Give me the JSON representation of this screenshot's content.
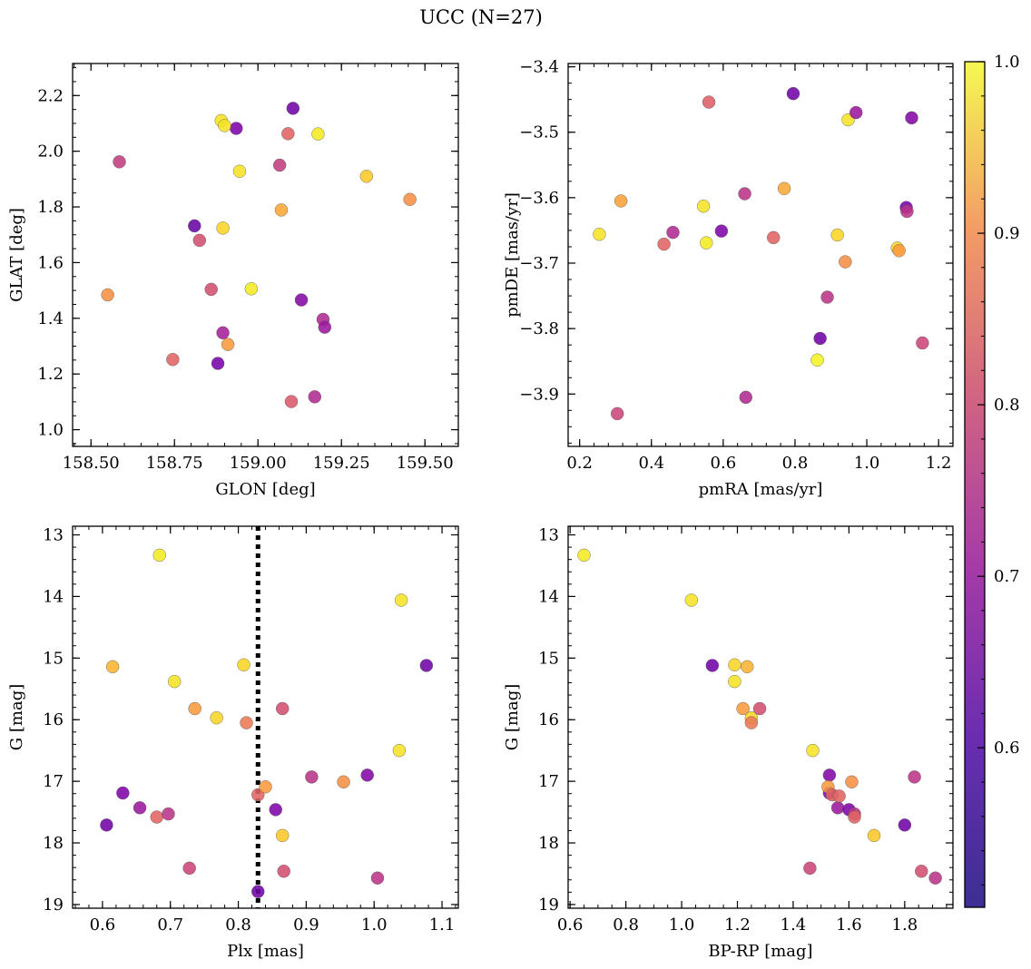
{
  "title": "UCC (N=27)",
  "chart_data": [
    {
      "type": "scatter",
      "xlabel": "GLON [deg]",
      "ylabel": "GLAT [deg]",
      "xlim": [
        158.445,
        159.6
      ],
      "ylim": [
        0.94,
        2.315
      ],
      "xticks": [
        158.5,
        158.75,
        159.0,
        159.25,
        159.5
      ],
      "xtick_labels": [
        "158.50",
        "158.75",
        "159.00",
        "159.25",
        "159.50"
      ],
      "yticks": [
        1.0,
        1.2,
        1.4,
        1.6,
        1.8,
        2.0,
        2.2
      ],
      "ytick_labels": [
        "1.0",
        "1.2",
        "1.4",
        "1.6",
        "1.8",
        "2.0",
        "2.2"
      ],
      "y_inverted": false,
      "x": [
        158.585,
        158.55,
        158.745,
        158.81,
        158.825,
        158.86,
        158.895,
        158.88,
        158.895,
        158.91,
        158.89,
        158.935,
        158.9,
        158.945,
        158.98,
        159.065,
        159.07,
        159.09,
        159.1,
        159.105,
        159.13,
        159.17,
        159.18,
        159.195,
        159.2,
        159.325,
        159.455
      ],
      "y": [
        1.962,
        1.484,
        1.252,
        1.732,
        1.68,
        1.504,
        1.348,
        1.238,
        1.724,
        1.306,
        2.11,
        2.082,
        2.092,
        1.928,
        1.506,
        1.95,
        1.789,
        2.063,
        1.101,
        2.154,
        1.466,
        1.118,
        2.062,
        1.396,
        1.368,
        1.91,
        1.827
      ],
      "c": [
        0.68,
        0.84,
        0.76,
        0.52,
        0.72,
        0.72,
        0.62,
        0.54,
        0.95,
        0.86,
        0.97,
        0.55,
        0.97,
        0.97,
        0.98,
        0.68,
        0.88,
        0.76,
        0.74,
        0.53,
        0.56,
        0.64,
        0.98,
        0.64,
        0.6,
        0.93,
        0.84
      ]
    },
    {
      "type": "scatter",
      "xlabel": "pmRA [mas/yr]",
      "ylabel": "pmDE [mas/yr]",
      "xlim": [
        0.168,
        1.24
      ],
      "ylim": [
        -3.98,
        -3.395
      ],
      "xticks": [
        0.2,
        0.4,
        0.6,
        0.8,
        1.0,
        1.2
      ],
      "xtick_labels": [
        "0.2",
        "0.4",
        "0.6",
        "0.8",
        "1.0",
        "1.2"
      ],
      "yticks": [
        -3.9,
        -3.8,
        -3.7,
        -3.6,
        -3.5,
        -3.4
      ],
      "ytick_labels": [
        "−3.9",
        "−3.8",
        "−3.7",
        "−3.6",
        "−3.5",
        "−3.4"
      ],
      "y_inverted": false,
      "x": [
        0.255,
        0.305,
        0.315,
        0.435,
        0.46,
        0.545,
        0.553,
        0.56,
        0.595,
        0.66,
        0.663,
        0.74,
        0.77,
        0.795,
        0.862,
        0.87,
        0.89,
        0.918,
        0.94,
        0.948,
        0.97,
        1.085,
        1.09,
        1.11,
        1.112,
        1.125,
        1.155
      ],
      "y": [
        -3.656,
        -3.93,
        -3.605,
        -3.671,
        -3.653,
        -3.613,
        -3.669,
        -3.454,
        -3.651,
        -3.594,
        -3.905,
        -3.661,
        -3.586,
        -3.441,
        -3.848,
        -3.815,
        -3.752,
        -3.657,
        -3.698,
        -3.481,
        -3.47,
        -3.677,
        -3.681,
        -3.615,
        -3.621,
        -3.478,
        -3.822
      ],
      "c": [
        0.97,
        0.7,
        0.87,
        0.76,
        0.64,
        0.97,
        0.98,
        0.75,
        0.55,
        0.66,
        0.64,
        0.76,
        0.88,
        0.53,
        0.99,
        0.53,
        0.66,
        0.95,
        0.84,
        0.97,
        0.6,
        0.95,
        0.86,
        0.54,
        0.66,
        0.56,
        0.7
      ]
    },
    {
      "type": "scatter",
      "xlabel": "Plx [mas]",
      "ylabel": "G [mag]",
      "xlim": [
        0.556,
        1.124
      ],
      "ylim": [
        19.06,
        12.86
      ],
      "xticks": [
        0.6,
        0.7,
        0.8,
        0.9,
        1.0,
        1.1
      ],
      "xtick_labels": [
        "0.6",
        "0.7",
        "0.8",
        "0.9",
        "1.0",
        "1.1"
      ],
      "yticks": [
        13,
        14,
        15,
        16,
        17,
        18,
        19
      ],
      "ytick_labels": [
        "13",
        "14",
        "15",
        "16",
        "17",
        "18",
        "19"
      ],
      "y_inverted": true,
      "vline": 0.829,
      "x": [
        0.684,
        0.615,
        0.706,
        0.736,
        0.768,
        0.808,
        0.812,
        0.606,
        0.63,
        0.655,
        0.68,
        0.697,
        0.728,
        0.829,
        0.84,
        0.855,
        0.865,
        0.865,
        0.867,
        0.908,
        0.955,
        0.99,
        1.005,
        1.037,
        1.04,
        1.077,
        0.829
      ],
      "y": [
        13.33,
        15.14,
        15.38,
        15.82,
        15.97,
        15.11,
        16.05,
        17.71,
        17.19,
        17.43,
        17.58,
        17.53,
        18.41,
        17.22,
        17.09,
        17.46,
        15.82,
        17.88,
        18.46,
        16.93,
        17.01,
        16.9,
        18.57,
        16.5,
        14.06,
        15.12,
        18.79
      ],
      "c": [
        0.98,
        0.9,
        0.97,
        0.86,
        0.95,
        0.95,
        0.8,
        0.53,
        0.55,
        0.6,
        0.76,
        0.66,
        0.7,
        0.76,
        0.86,
        0.55,
        0.72,
        0.93,
        0.72,
        0.66,
        0.84,
        0.56,
        0.66,
        0.97,
        0.97,
        0.53,
        0.53
      ]
    },
    {
      "type": "scatter",
      "xlabel": "BP-RP [mag]",
      "ylabel": "G [mag]",
      "xlim": [
        0.593,
        1.973
      ],
      "ylim": [
        19.06,
        12.86
      ],
      "xticks": [
        0.6,
        0.8,
        1.0,
        1.2,
        1.4,
        1.6,
        1.8
      ],
      "xtick_labels": [
        "0.6",
        "0.8",
        "1.0",
        "1.2",
        "1.4",
        "1.6",
        "1.8"
      ],
      "yticks": [
        13,
        14,
        15,
        16,
        17,
        18,
        19
      ],
      "ytick_labels": [
        "13",
        "14",
        "15",
        "16",
        "17",
        "18",
        "19"
      ],
      "y_inverted": true,
      "x": [
        0.65,
        1.035,
        1.11,
        1.19,
        1.19,
        1.235,
        1.22,
        1.25,
        1.25,
        1.28,
        1.47,
        1.53,
        1.53,
        1.525,
        1.54,
        1.56,
        1.565,
        1.6,
        1.61,
        1.62,
        1.62,
        1.69,
        1.46,
        1.8,
        1.835,
        1.86,
        1.91
      ],
      "y": [
        13.33,
        14.06,
        15.12,
        15.11,
        15.38,
        15.14,
        15.82,
        15.97,
        16.05,
        15.82,
        16.5,
        16.9,
        17.19,
        17.09,
        17.22,
        17.43,
        17.24,
        17.46,
        17.01,
        17.53,
        17.58,
        17.88,
        18.41,
        17.71,
        16.93,
        18.46,
        18.57
      ],
      "c": [
        0.98,
        0.97,
        0.53,
        0.95,
        0.97,
        0.9,
        0.86,
        0.95,
        0.8,
        0.72,
        0.97,
        0.56,
        0.55,
        0.86,
        0.76,
        0.6,
        0.76,
        0.55,
        0.84,
        0.66,
        0.76,
        0.93,
        0.7,
        0.53,
        0.66,
        0.72,
        0.66
      ]
    }
  ],
  "colorbar": {
    "range": [
      0.507,
      1.0
    ],
    "ticks": [
      0.6,
      0.7,
      0.8,
      0.9,
      1.0
    ],
    "tick_labels": [
      "0.6",
      "0.7",
      "0.8",
      "0.9",
      "1.0"
    ],
    "colormap": "plasma"
  }
}
